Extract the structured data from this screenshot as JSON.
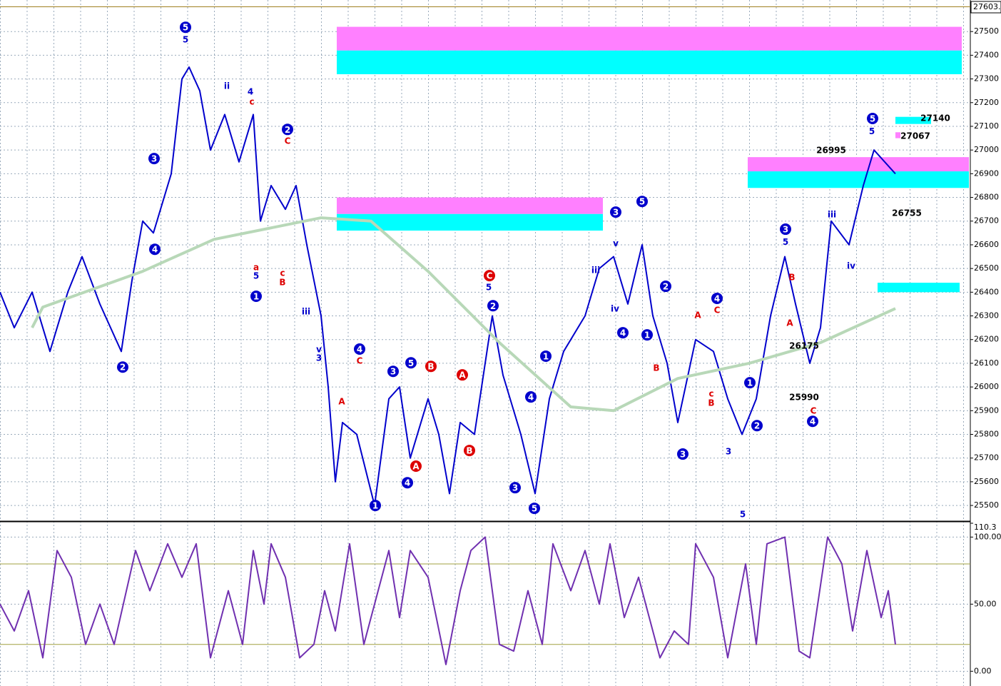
{
  "chart_data": [
    {
      "type": "line",
      "xlim": [
        0,
        136
      ],
      "ylim": [
        25440,
        27603
      ],
      "grid": true,
      "last_price": {
        "value": 27603,
        "label": "27603."
      },
      "yticks": [
        25500,
        25600,
        25700,
        25800,
        25900,
        26000,
        26100,
        26200,
        26300,
        26400,
        26500,
        26600,
        26700,
        26800,
        26900,
        27000,
        27100,
        27200,
        27300,
        27400,
        27500
      ],
      "series": [
        {
          "color": "#0000cc",
          "x": [
            0,
            2,
            4.5,
            7,
            9.5,
            11.5,
            14,
            17,
            18.5,
            20,
            21.5,
            24,
            25.5,
            26.5,
            28,
            29.5,
            31.5,
            33.5,
            35.5,
            36.5,
            38,
            40,
            41.5,
            43,
            45,
            46,
            47,
            48,
            50,
            52.5,
            54.5,
            56,
            57.5,
            60,
            61.5,
            63,
            64.5,
            66.5,
            69,
            70.5,
            73,
            75,
            77,
            79,
            82,
            84,
            86,
            88,
            90,
            91.5,
            93.5,
            95,
            97.5,
            100,
            102,
            104,
            106,
            108,
            110,
            111.5,
            113.5,
            115,
            116.5,
            119,
            121,
            122.5,
            124,
            125.5
          ],
          "values": [
            26400,
            26250,
            26400,
            26150,
            26400,
            26550,
            26350,
            26150,
            26450,
            26700,
            26650,
            26900,
            27300,
            27350,
            27250,
            27000,
            27150,
            26950,
            27150,
            26700,
            26850,
            26750,
            26850,
            26600,
            26300,
            26000,
            25600,
            25850,
            25800,
            25500,
            25950,
            26000,
            25700,
            25950,
            25800,
            25550,
            25850,
            25800,
            26300,
            26050,
            25800,
            25550,
            25950,
            26150,
            26300,
            26500,
            26550,
            26350,
            26600,
            26300,
            26100,
            25850,
            26200,
            26150,
            25950,
            25800,
            25950,
            26300,
            26550,
            26350,
            26100,
            26250,
            26700,
            26600,
            26850,
            27000,
            26950,
            26900
          ]
        },
        {
          "color": "#b8d8b8",
          "x": [
            4.5,
            6,
            20,
            30,
            45,
            52,
            60,
            70,
            80,
            86,
            95,
            105,
            115,
            125.5
          ],
          "values": [
            26250,
            26337,
            26488,
            26623,
            26714,
            26700,
            26488,
            26187,
            25916,
            25900,
            26036,
            26100,
            26187,
            26331
          ]
        }
      ],
      "zones": [
        {
          "x": [
            47.2,
            134.8
          ],
          "y": [
            27420,
            27520
          ],
          "color": "#ff80ff"
        },
        {
          "x": [
            47.2,
            134.8
          ],
          "y": [
            27320,
            27420
          ],
          "color": "#00ffff"
        },
        {
          "x": [
            47.2,
            84.5
          ],
          "y": [
            26730,
            26800
          ],
          "color": "#ff80ff"
        },
        {
          "x": [
            47.2,
            84.5
          ],
          "y": [
            26660,
            26730
          ],
          "color": "#00ffff"
        },
        {
          "x": [
            104.8,
            135.8
          ],
          "y": [
            26910,
            26970
          ],
          "color": "#ff80ff"
        },
        {
          "x": [
            104.8,
            135.8
          ],
          "y": [
            26840,
            26910
          ],
          "color": "#00ffff"
        },
        {
          "x": [
            123,
            134.5
          ],
          "y": [
            26400,
            26440
          ],
          "color": "#00ffff"
        },
        {
          "x": [
            125.5,
            130.5
          ],
          "y": [
            27110,
            27140
          ],
          "color": "#00ffff"
        },
        {
          "x": [
            125.5,
            126.2
          ],
          "y": [
            27050,
            27075
          ],
          "color": "#ff80ff"
        }
      ],
      "annotations": [
        {
          "text": "5",
          "x": 26,
          "y": 27518,
          "color": "#0000cc",
          "circle": true
        },
        {
          "text": "3",
          "x": 21.6,
          "y": 26964,
          "color": "#0000cc",
          "circle": true
        },
        {
          "text": "4",
          "x": 21.7,
          "y": 26581,
          "color": "#0000cc",
          "circle": true
        },
        {
          "text": "2",
          "x": 17.2,
          "y": 26084,
          "color": "#0000cc",
          "circle": true
        },
        {
          "text": "2",
          "x": 40.3,
          "y": 27087,
          "color": "#0000cc",
          "circle": true
        },
        {
          "text": "1",
          "x": 35.9,
          "y": 26383,
          "color": "#0000cc",
          "circle": true
        },
        {
          "text": "4",
          "x": 50.4,
          "y": 26160,
          "color": "#0000cc",
          "circle": true
        },
        {
          "text": "3",
          "x": 55.1,
          "y": 26066,
          "color": "#0000cc",
          "circle": true
        },
        {
          "text": "5",
          "x": 57.6,
          "y": 26102,
          "color": "#0000cc",
          "circle": true
        },
        {
          "text": "1",
          "x": 52.6,
          "y": 25500,
          "color": "#0000cc",
          "circle": true
        },
        {
          "text": "4",
          "x": 57.1,
          "y": 25596,
          "color": "#0000cc",
          "circle": true
        },
        {
          "text": "C",
          "x": 68.6,
          "y": 26470,
          "color": "#dd0000",
          "circle": true
        },
        {
          "text": "B",
          "x": 60.4,
          "y": 26087,
          "color": "#dd0000",
          "circle": true
        },
        {
          "text": "A",
          "x": 64.8,
          "y": 26051,
          "color": "#dd0000",
          "circle": true
        },
        {
          "text": "A",
          "x": 58.3,
          "y": 25666,
          "color": "#dd0000",
          "circle": true
        },
        {
          "text": "B",
          "x": 65.8,
          "y": 25732,
          "color": "#dd0000",
          "circle": true
        },
        {
          "text": "2",
          "x": 69.1,
          "y": 26343,
          "color": "#0000cc",
          "circle": true
        },
        {
          "text": "4",
          "x": 74.4,
          "y": 25958,
          "color": "#0000cc",
          "circle": true
        },
        {
          "text": "1",
          "x": 76.5,
          "y": 26130,
          "color": "#0000cc",
          "circle": true
        },
        {
          "text": "3",
          "x": 72.2,
          "y": 25575,
          "color": "#0000cc",
          "circle": true
        },
        {
          "text": "5",
          "x": 74.9,
          "y": 25488,
          "color": "#0000cc",
          "circle": true
        },
        {
          "text": "3",
          "x": 86.3,
          "y": 26738,
          "color": "#0000cc",
          "circle": true
        },
        {
          "text": "5",
          "x": 90,
          "y": 26783,
          "color": "#0000cc",
          "circle": true
        },
        {
          "text": "4",
          "x": 87.3,
          "y": 26229,
          "color": "#0000cc",
          "circle": true
        },
        {
          "text": "1",
          "x": 90.7,
          "y": 26220,
          "color": "#0000cc",
          "circle": true
        },
        {
          "text": "2",
          "x": 93.3,
          "y": 26425,
          "color": "#0000cc",
          "circle": true
        },
        {
          "text": "4",
          "x": 100.5,
          "y": 26374,
          "color": "#0000cc",
          "circle": true
        },
        {
          "text": "3",
          "x": 95.7,
          "y": 25717,
          "color": "#0000cc",
          "circle": true
        },
        {
          "text": "1",
          "x": 105.1,
          "y": 26018,
          "color": "#0000cc",
          "circle": true
        },
        {
          "text": "2",
          "x": 106.1,
          "y": 25837,
          "color": "#0000cc",
          "circle": true
        },
        {
          "text": "3",
          "x": 110.1,
          "y": 26666,
          "color": "#0000cc",
          "circle": true
        },
        {
          "text": "4",
          "x": 113.9,
          "y": 25855,
          "color": "#0000cc",
          "circle": true
        },
        {
          "text": "5",
          "x": 122.3,
          "y": 27133,
          "color": "#0000cc",
          "circle": true
        },
        {
          "text": "5",
          "x": 26,
          "y": 27467,
          "color": "#0000cc",
          "circle": false
        },
        {
          "text": "ii",
          "x": 31.8,
          "y": 27271,
          "color": "#0000cc",
          "circle": false
        },
        {
          "text": "4",
          "x": 35.1,
          "y": 27247,
          "color": "#0000cc",
          "circle": false
        },
        {
          "text": "c",
          "x": 35.3,
          "y": 27205,
          "color": "#dd0000",
          "circle": false
        },
        {
          "text": "C",
          "x": 40.3,
          "y": 27039,
          "color": "#dd0000",
          "circle": false
        },
        {
          "text": "iii",
          "x": 42.9,
          "y": 26319,
          "color": "#0000cc",
          "circle": false
        },
        {
          "text": "v",
          "x": 44.7,
          "y": 26160,
          "color": "#0000cc",
          "circle": false
        },
        {
          "text": "3",
          "x": 44.7,
          "y": 26124,
          "color": "#0000cc",
          "circle": false
        },
        {
          "text": "a",
          "x": 35.9,
          "y": 26506,
          "color": "#dd0000",
          "circle": false
        },
        {
          "text": "5",
          "x": 35.9,
          "y": 26470,
          "color": "#0000cc",
          "circle": false
        },
        {
          "text": "c",
          "x": 39.6,
          "y": 26482,
          "color": "#dd0000",
          "circle": false
        },
        {
          "text": "B",
          "x": 39.6,
          "y": 26443,
          "color": "#dd0000",
          "circle": false
        },
        {
          "text": "A",
          "x": 47.9,
          "y": 25940,
          "color": "#dd0000",
          "circle": false
        },
        {
          "text": "C",
          "x": 50.4,
          "y": 26112,
          "color": "#dd0000",
          "circle": false
        },
        {
          "text": "5",
          "x": 68.5,
          "y": 26422,
          "color": "#0000cc",
          "circle": false
        },
        {
          "text": "iii",
          "x": 83.5,
          "y": 26494,
          "color": "#0000cc",
          "circle": false
        },
        {
          "text": "iv",
          "x": 86.2,
          "y": 26331,
          "color": "#0000cc",
          "circle": false
        },
        {
          "text": "v",
          "x": 86.3,
          "y": 26608,
          "color": "#0000cc",
          "circle": false
        },
        {
          "text": "A",
          "x": 97.8,
          "y": 26304,
          "color": "#dd0000",
          "circle": false
        },
        {
          "text": "C",
          "x": 100.5,
          "y": 26325,
          "color": "#dd0000",
          "circle": false
        },
        {
          "text": "B",
          "x": 92,
          "y": 26081,
          "color": "#dd0000",
          "circle": false
        },
        {
          "text": "c",
          "x": 99.7,
          "y": 25973,
          "color": "#dd0000",
          "circle": false
        },
        {
          "text": "B",
          "x": 99.7,
          "y": 25934,
          "color": "#dd0000",
          "circle": false
        },
        {
          "text": "5",
          "x": 104.1,
          "y": 25464,
          "color": "#0000cc",
          "circle": false
        },
        {
          "text": "3",
          "x": 102.1,
          "y": 25729,
          "color": "#0000cc",
          "circle": false
        },
        {
          "text": "5",
          "x": 110.1,
          "y": 26614,
          "color": "#0000cc",
          "circle": false
        },
        {
          "text": "B",
          "x": 111,
          "y": 26464,
          "color": "#dd0000",
          "circle": false
        },
        {
          "text": "A",
          "x": 110.7,
          "y": 26271,
          "color": "#dd0000",
          "circle": false
        },
        {
          "text": "C",
          "x": 114,
          "y": 25901,
          "color": "#dd0000",
          "circle": false
        },
        {
          "text": "iii",
          "x": 116.6,
          "y": 26729,
          "color": "#0000cc",
          "circle": false
        },
        {
          "text": "iv",
          "x": 119.3,
          "y": 26512,
          "color": "#0000cc",
          "circle": false
        },
        {
          "text": "5",
          "x": 122.2,
          "y": 27081,
          "color": "#0000cc",
          "circle": false
        },
        {
          "text": "27140",
          "x": 131.1,
          "y": 27136,
          "color": "#000000",
          "circle": false
        },
        {
          "text": "27067",
          "x": 128.3,
          "y": 27060,
          "color": "#000000",
          "circle": false
        },
        {
          "text": "26995",
          "x": 116.5,
          "y": 27000,
          "color": "#000000",
          "circle": false
        },
        {
          "text": "26755",
          "x": 127.1,
          "y": 26735,
          "color": "#000000",
          "circle": false
        },
        {
          "text": "25990",
          "x": 112.7,
          "y": 25958,
          "color": "#000000",
          "circle": false
        },
        {
          "text": "26175",
          "x": 112.7,
          "y": 26175,
          "color": "#000000",
          "circle": false
        }
      ]
    },
    {
      "type": "line",
      "xlim": [
        0,
        136
      ],
      "ylim": [
        -11,
        110.3
      ],
      "grid": true,
      "yticks": [
        {
          "value": 0,
          "label": "0.00"
        },
        {
          "value": 50,
          "label": "50.00"
        },
        {
          "value": 100,
          "label": "100.00"
        },
        {
          "value": 110.3,
          "label": "110.3"
        }
      ],
      "levels": [
        20,
        80
      ],
      "level_color": "#a0a040",
      "series": [
        {
          "color": "#7030b0",
          "x": [
            0,
            2,
            4,
            6,
            8,
            10,
            12,
            14,
            16,
            19,
            21,
            23.5,
            25.5,
            27.5,
            29.5,
            32,
            34,
            35.5,
            37,
            38,
            40,
            42,
            44,
            45.5,
            47,
            49,
            51,
            53,
            54.5,
            56,
            57.5,
            60,
            62.5,
            64.5,
            66,
            68,
            70,
            72,
            74,
            76,
            77.5,
            80,
            82,
            84,
            85.5,
            87.5,
            89.5,
            91,
            92.5,
            94.5,
            96.5,
            97.5,
            100,
            102,
            104.5,
            106,
            107.5,
            110,
            112,
            113.5,
            116,
            118,
            119.5,
            121.5,
            123.5,
            124.5,
            125.5
          ],
          "values": [
            50,
            30,
            60,
            10,
            90,
            70,
            20,
            50,
            20,
            90,
            60,
            95,
            70,
            95,
            10,
            60,
            20,
            90,
            50,
            95,
            70,
            10,
            20,
            60,
            30,
            95,
            20,
            60,
            90,
            40,
            90,
            70,
            5,
            60,
            90,
            100,
            20,
            15,
            60,
            20,
            95,
            60,
            90,
            50,
            95,
            40,
            70,
            40,
            10,
            30,
            20,
            95,
            70,
            10,
            80,
            20,
            95,
            100,
            15,
            10,
            100,
            80,
            30,
            90,
            40,
            60,
            20
          ]
        }
      ]
    }
  ]
}
